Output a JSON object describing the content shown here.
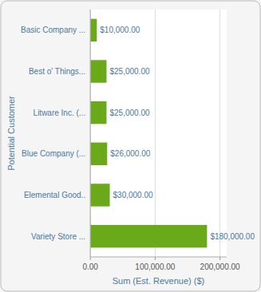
{
  "chart_data": {
    "type": "bar",
    "orientation": "horizontal",
    "categories": [
      "Variety Store ...",
      "Elemental Good..",
      "Blue Company (...",
      "Litware Inc. (...",
      "Best o' Things...",
      "Basic Company ..."
    ],
    "values": [
      180000,
      30000,
      26000,
      25000,
      25000,
      10000
    ],
    "value_labels": [
      "$180,000.00",
      "$30,000.00",
      "$26,000.00",
      "$25,000.00",
      "$25,000.00",
      "$10,000.00"
    ],
    "data_labels": true,
    "color": "#6aaa1a",
    "xlabel": "Sum (Est. Revenue) ($)",
    "ylabel": "Potential Customer",
    "xlim": [
      0,
      210000
    ],
    "xticks": [
      {
        "value": 0,
        "label": "0.00"
      },
      {
        "value": 100000,
        "label": "100,000.00"
      },
      {
        "value": 200000,
        "label": "200,000.00"
      }
    ],
    "grid": true
  }
}
